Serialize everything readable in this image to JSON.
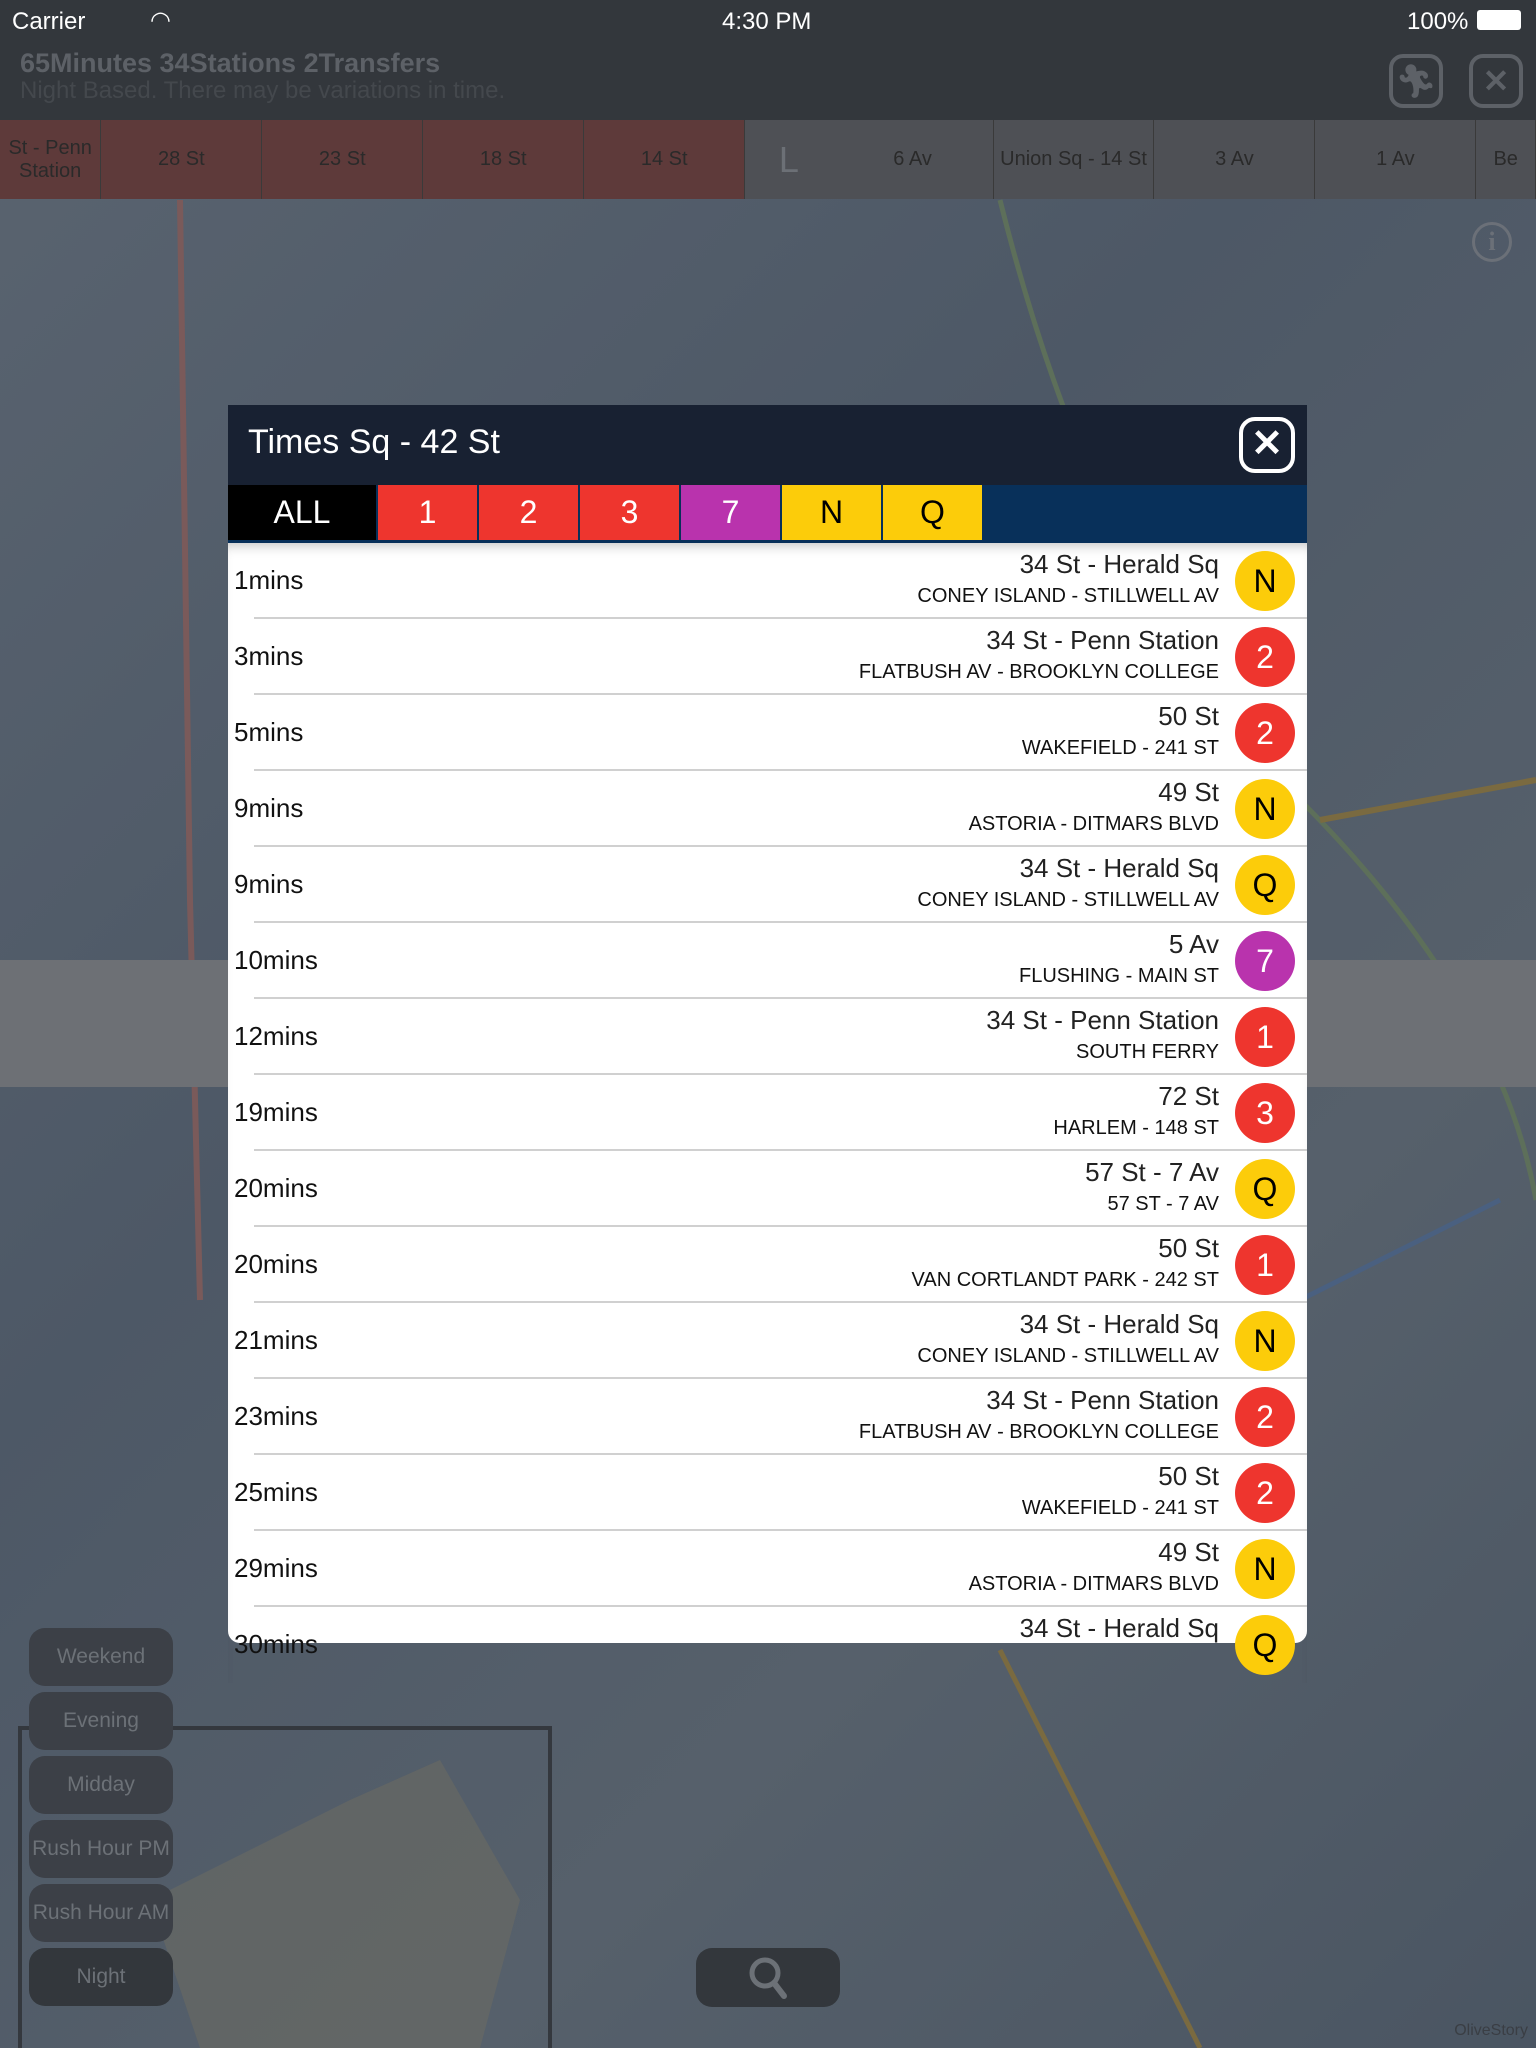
{
  "status_bar": {
    "carrier": "Carrier",
    "time": "4:30 PM",
    "battery": "100%"
  },
  "route_header": {
    "summary": "65Minutes 34Stations 2Transfers",
    "note": "Night Based. There may be variations in time."
  },
  "route_strip": {
    "stations_red": [
      "St - Penn Station",
      "28 St",
      "23 St",
      "18 St",
      "14 St"
    ],
    "transfer_line": "L",
    "stations_gray": [
      "6 Av",
      "Union Sq - 14 St",
      "3 Av",
      "1 Av",
      "Be"
    ]
  },
  "time_modes": [
    "Weekend",
    "Evening",
    "Midday",
    "Rush Hour PM",
    "Rush Hour AM",
    "Night"
  ],
  "selected_time_mode": "Night",
  "credit": "OliveStory",
  "popup": {
    "title": "Times Sq - 42 St",
    "tabs": [
      {
        "label": "ALL",
        "color": "#000000",
        "text": "#ffffff"
      },
      {
        "label": "1",
        "color": "#ee352e",
        "text": "#ffffff"
      },
      {
        "label": "2",
        "color": "#ee352e",
        "text": "#ffffff"
      },
      {
        "label": "3",
        "color": "#ee352e",
        "text": "#ffffff"
      },
      {
        "label": "7",
        "color": "#b933ad",
        "text": "#ffffff"
      },
      {
        "label": "N",
        "color": "#fccc0a",
        "text": "#000000"
      },
      {
        "label": "Q",
        "color": "#fccc0a",
        "text": "#000000"
      }
    ],
    "selected_tab": "ALL",
    "arrivals": [
      {
        "time": "1mins",
        "station": "34 St - Herald Sq",
        "destination": "CONEY ISLAND - STILLWELL AV",
        "line": "N"
      },
      {
        "time": "3mins",
        "station": "34 St - Penn Station",
        "destination": "FLATBUSH AV - BROOKLYN COLLEGE",
        "line": "2"
      },
      {
        "time": "5mins",
        "station": "50 St",
        "destination": "WAKEFIELD - 241 ST",
        "line": "2"
      },
      {
        "time": "9mins",
        "station": "49 St",
        "destination": "ASTORIA - DITMARS BLVD",
        "line": "N"
      },
      {
        "time": "9mins",
        "station": "34 St - Herald Sq",
        "destination": "CONEY ISLAND - STILLWELL AV",
        "line": "Q"
      },
      {
        "time": "10mins",
        "station": "5 Av",
        "destination": "FLUSHING - MAIN ST",
        "line": "7"
      },
      {
        "time": "12mins",
        "station": "34 St - Penn Station",
        "destination": "SOUTH FERRY",
        "line": "1"
      },
      {
        "time": "19mins",
        "station": "72 St",
        "destination": "HARLEM - 148 ST",
        "line": "3"
      },
      {
        "time": "20mins",
        "station": "57 St - 7 Av",
        "destination": "57 ST - 7 AV",
        "line": "Q"
      },
      {
        "time": "20mins",
        "station": "50 St",
        "destination": "VAN CORTLANDT PARK - 242 ST",
        "line": "1"
      },
      {
        "time": "21mins",
        "station": "34 St - Herald Sq",
        "destination": "CONEY ISLAND - STILLWELL AV",
        "line": "N"
      },
      {
        "time": "23mins",
        "station": "34 St - Penn Station",
        "destination": "FLATBUSH AV - BROOKLYN COLLEGE",
        "line": "2"
      },
      {
        "time": "25mins",
        "station": "50 St",
        "destination": "WAKEFIELD - 241 ST",
        "line": "2"
      },
      {
        "time": "29mins",
        "station": "49 St",
        "destination": "ASTORIA - DITMARS BLVD",
        "line": "N"
      },
      {
        "time": "30mins",
        "station": "34 St - Herald Sq",
        "destination": "",
        "line": "Q"
      }
    ]
  },
  "line_colors": {
    "1": "#ee352e",
    "2": "#ee352e",
    "3": "#ee352e",
    "7": "#b933ad",
    "N": "#fccc0a",
    "Q": "#fccc0a"
  }
}
